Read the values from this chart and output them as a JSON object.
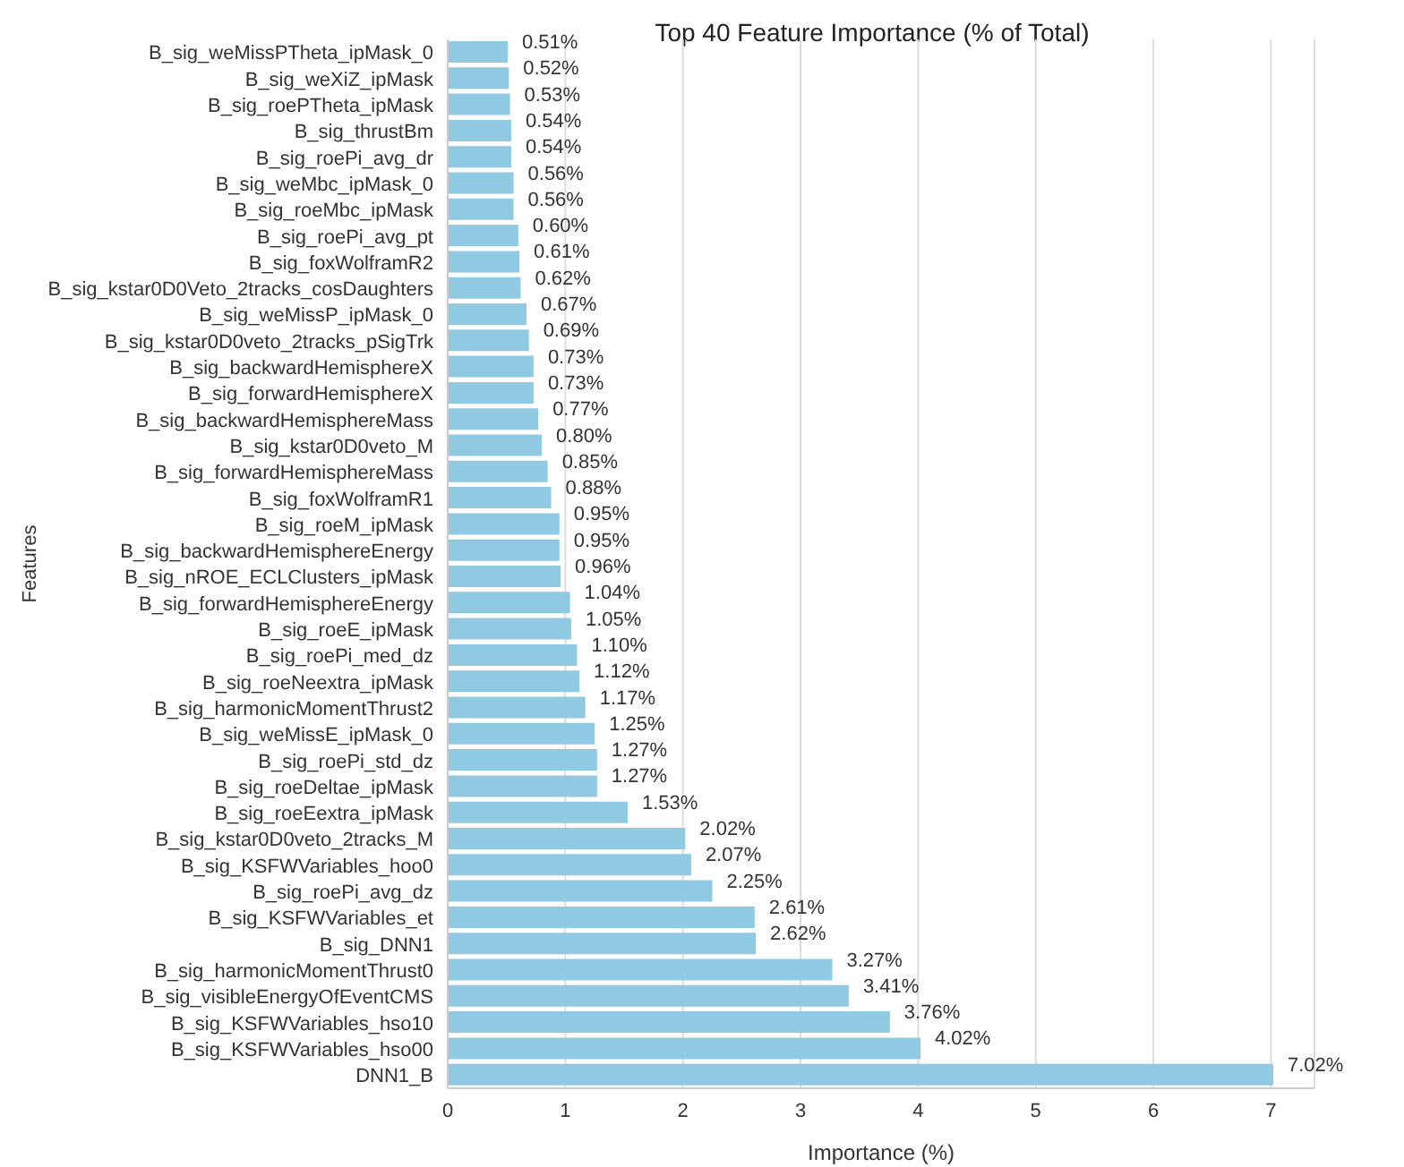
{
  "chart_data": {
    "type": "bar",
    "orientation": "horizontal",
    "title": "Top 40 Feature Importance (% of Total)",
    "xlabel": "Importance (%)",
    "ylabel": "Features",
    "categories": [
      "B_sig_weMissPTheta_ipMask_0",
      "B_sig_weXiZ_ipMask",
      "B_sig_roePTheta_ipMask",
      "B_sig_thrustBm",
      "B_sig_roePi_avg_dr",
      "B_sig_weMbc_ipMask_0",
      "B_sig_roeMbc_ipMask",
      "B_sig_roePi_avg_pt",
      "B_sig_foxWolframR2",
      "B_sig_kstar0D0Veto_2tracks_cosDaughters",
      "B_sig_weMissP_ipMask_0",
      "B_sig_kstar0D0veto_2tracks_pSigTrk",
      "B_sig_backwardHemisphereX",
      "B_sig_forwardHemisphereX",
      "B_sig_backwardHemisphereMass",
      "B_sig_kstar0D0veto_M",
      "B_sig_forwardHemisphereMass",
      "B_sig_foxWolframR1",
      "B_sig_roeM_ipMask",
      "B_sig_backwardHemisphereEnergy",
      "B_sig_nROE_ECLClusters_ipMask",
      "B_sig_forwardHemisphereEnergy",
      "B_sig_roeE_ipMask",
      "B_sig_roePi_med_dz",
      "B_sig_roeNeextra_ipMask",
      "B_sig_harmonicMomentThrust2",
      "B_sig_weMissE_ipMask_0",
      "B_sig_roePi_std_dz",
      "B_sig_roeDeltae_ipMask",
      "B_sig_roeEextra_ipMask",
      "B_sig_kstar0D0veto_2tracks_M",
      "B_sig_KSFWVariables_hoo0",
      "B_sig_roePi_avg_dz",
      "B_sig_KSFWVariables_et",
      "B_sig_DNN1",
      "B_sig_harmonicMomentThrust0",
      "B_sig_visibleEnergyOfEventCMS",
      "B_sig_KSFWVariables_hso10",
      "B_sig_KSFWVariables_hso00",
      "DNN1_B"
    ],
    "values": [
      0.51,
      0.52,
      0.53,
      0.54,
      0.54,
      0.56,
      0.56,
      0.6,
      0.61,
      0.62,
      0.67,
      0.69,
      0.73,
      0.73,
      0.77,
      0.8,
      0.85,
      0.88,
      0.95,
      0.95,
      0.96,
      1.04,
      1.05,
      1.1,
      1.12,
      1.17,
      1.25,
      1.27,
      1.27,
      1.53,
      2.02,
      2.07,
      2.25,
      2.61,
      2.62,
      3.27,
      3.41,
      3.76,
      4.02,
      7.02
    ],
    "value_labels": [
      "0.51%",
      "0.52%",
      "0.53%",
      "0.54%",
      "0.54%",
      "0.56%",
      "0.56%",
      "0.60%",
      "0.61%",
      "0.62%",
      "0.67%",
      "0.69%",
      "0.73%",
      "0.73%",
      "0.77%",
      "0.80%",
      "0.85%",
      "0.88%",
      "0.95%",
      "0.95%",
      "0.96%",
      "1.04%",
      "1.05%",
      "1.10%",
      "1.12%",
      "1.17%",
      "1.25%",
      "1.27%",
      "1.27%",
      "1.53%",
      "2.02%",
      "2.07%",
      "2.25%",
      "2.61%",
      "2.62%",
      "3.27%",
      "3.41%",
      "3.76%",
      "4.02%",
      "7.02%"
    ],
    "color": "#8fcae2",
    "xlim": [
      0,
      7.37
    ],
    "xticks": [
      0,
      1,
      2,
      3,
      4,
      5,
      6,
      7
    ],
    "grid": "x"
  }
}
